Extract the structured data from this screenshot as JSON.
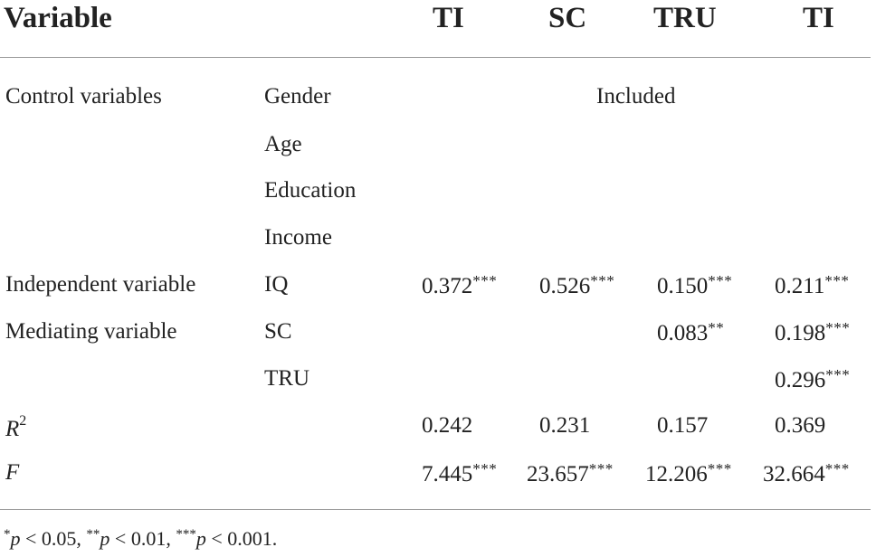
{
  "table": {
    "header": {
      "variable": "Variable",
      "columns": [
        "TI",
        "SC",
        "TRU",
        "TI"
      ]
    },
    "rows": [
      {
        "group": "Control variables",
        "item": "Gender",
        "span_text": "Included"
      },
      {
        "group": "",
        "item": "Age"
      },
      {
        "group": "",
        "item": "Education"
      },
      {
        "group": "",
        "item": "Income"
      },
      {
        "group": "Independent variable",
        "item": "IQ",
        "values": [
          {
            "v": "0.372",
            "s": "***"
          },
          {
            "v": "0.526",
            "s": "***"
          },
          {
            "v": "0.150",
            "s": "***"
          },
          {
            "v": "0.211",
            "s": "***"
          }
        ]
      },
      {
        "group": "Mediating variable",
        "item": "SC",
        "values": [
          {
            "v": "",
            "s": ""
          },
          {
            "v": "",
            "s": ""
          },
          {
            "v": "0.083",
            "s": "**"
          },
          {
            "v": "0.198",
            "s": "***"
          }
        ]
      },
      {
        "group": "",
        "item": "TRU",
        "values": [
          {
            "v": "",
            "s": ""
          },
          {
            "v": "",
            "s": ""
          },
          {
            "v": "",
            "s": ""
          },
          {
            "v": "0.296",
            "s": "***"
          }
        ]
      },
      {
        "group_base": "R",
        "group_sup": "2",
        "item": "",
        "values": [
          {
            "v": "0.242",
            "s": ""
          },
          {
            "v": "0.231",
            "s": ""
          },
          {
            "v": "0.157",
            "s": ""
          },
          {
            "v": "0.369",
            "s": ""
          }
        ]
      },
      {
        "group": "F",
        "item": "",
        "values": [
          {
            "v": "7.445",
            "s": "***"
          },
          {
            "v": "23.657",
            "s": "***"
          },
          {
            "v": "12.206",
            "s": "***"
          },
          {
            "v": "32.664",
            "s": "***"
          }
        ]
      }
    ]
  },
  "footnote": {
    "s1": "*",
    "p1": "p",
    "t1": " < 0.05, ",
    "s2": "**",
    "p2": "p",
    "t2": " < 0.01, ",
    "s3": "***",
    "p3": "p",
    "t3": " < 0.001."
  }
}
